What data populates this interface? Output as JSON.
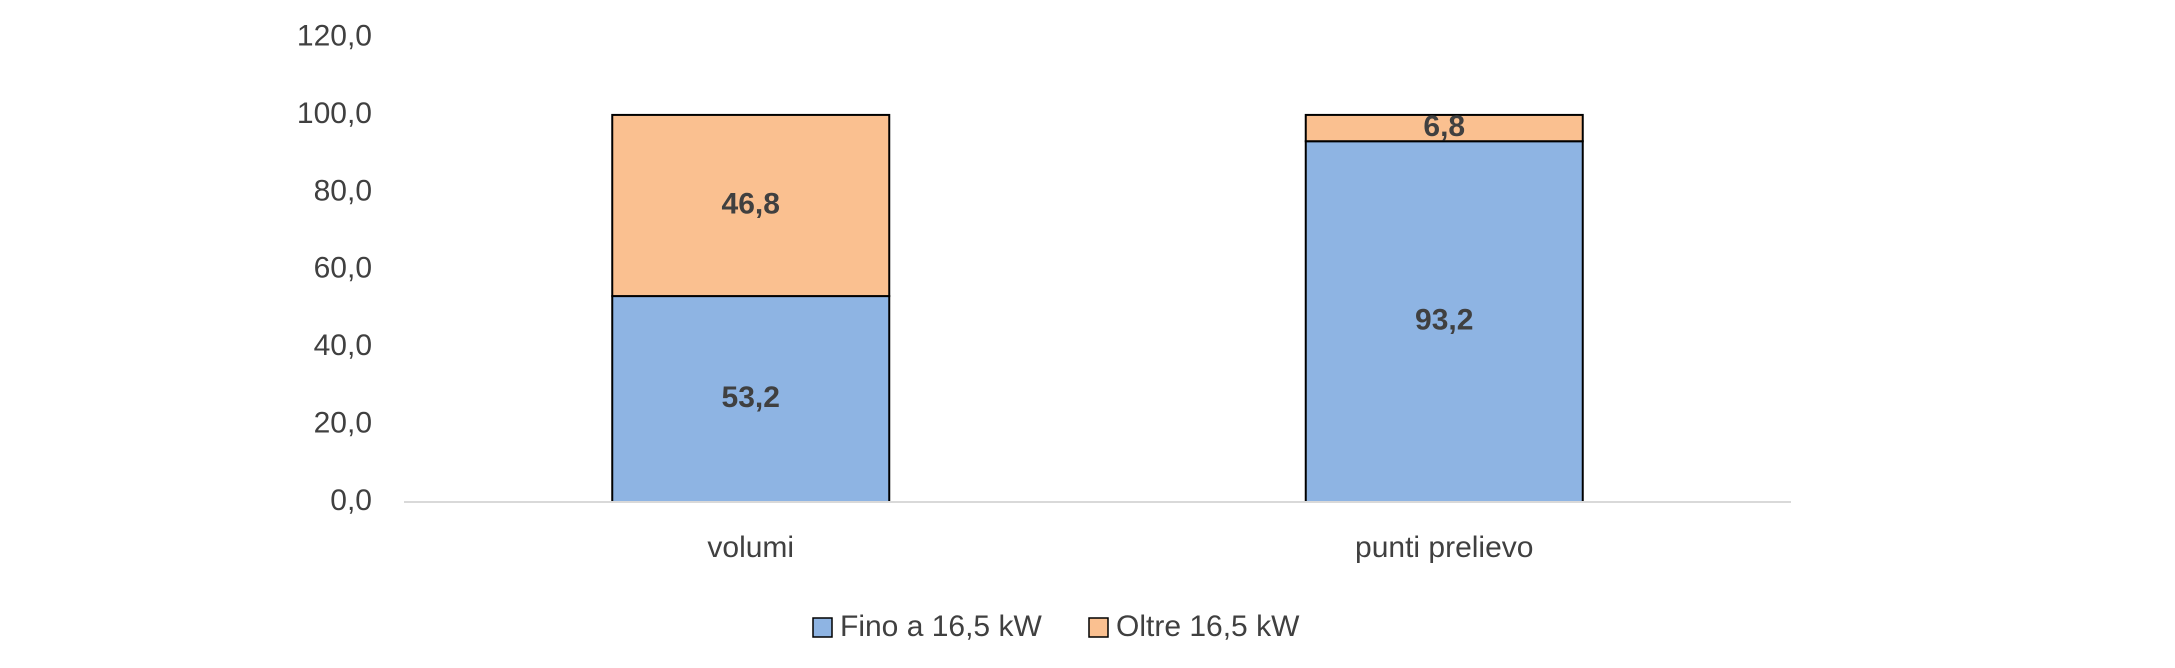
{
  "chart_data": {
    "type": "stacked_bar",
    "categories": [
      "volumi",
      "punti prelievo"
    ],
    "series": [
      {
        "name": "Fino a 16,5 kW",
        "color": "#8eb4e3",
        "values": [
          53.2,
          93.2
        ],
        "value_labels": [
          "53,2",
          "93,2"
        ]
      },
      {
        "name": "Oltre 16,5 kW",
        "color": "#fac090",
        "values": [
          46.8,
          6.8
        ],
        "value_labels": [
          "46,8",
          "6,8"
        ]
      }
    ],
    "ylim": [
      0,
      120
    ],
    "yticks": [
      {
        "value": 0,
        "label": "0,0"
      },
      {
        "value": 20,
        "label": "20,0"
      },
      {
        "value": 40,
        "label": "40,0"
      },
      {
        "value": 60,
        "label": "60,0"
      },
      {
        "value": 80,
        "label": "80,0"
      },
      {
        "value": 100,
        "label": "100,0"
      },
      {
        "value": 120,
        "label": "120,0"
      }
    ],
    "grid": false,
    "legend": "bottom"
  }
}
